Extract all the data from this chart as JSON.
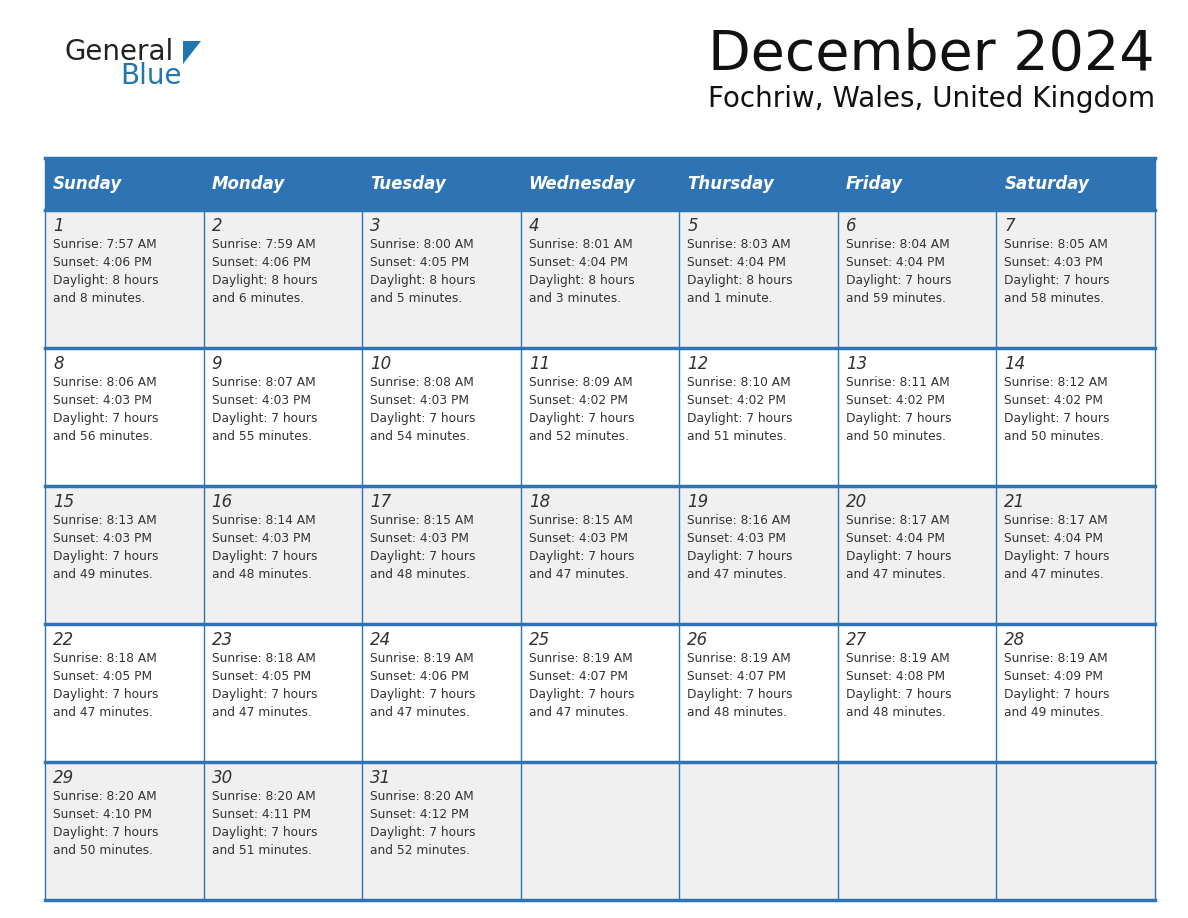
{
  "title": "December 2024",
  "subtitle": "Fochriw, Wales, United Kingdom",
  "header_bg": "#2E74B5",
  "header_text_color": "#FFFFFF",
  "days_of_week": [
    "Sunday",
    "Monday",
    "Tuesday",
    "Wednesday",
    "Thursday",
    "Friday",
    "Saturday"
  ],
  "row_bg_odd": "#F0F0F0",
  "row_bg_even": "#FFFFFF",
  "cell_text_color": "#333333",
  "grid_line_color": "#2E74B5",
  "calendar_data": [
    [
      {
        "day": "1",
        "sunrise": "7:57 AM",
        "sunset": "4:06 PM",
        "daylight1": "Daylight: 8 hours",
        "daylight2": "and 8 minutes."
      },
      {
        "day": "2",
        "sunrise": "7:59 AM",
        "sunset": "4:06 PM",
        "daylight1": "Daylight: 8 hours",
        "daylight2": "and 6 minutes."
      },
      {
        "day": "3",
        "sunrise": "8:00 AM",
        "sunset": "4:05 PM",
        "daylight1": "Daylight: 8 hours",
        "daylight2": "and 5 minutes."
      },
      {
        "day": "4",
        "sunrise": "8:01 AM",
        "sunset": "4:04 PM",
        "daylight1": "Daylight: 8 hours",
        "daylight2": "and 3 minutes."
      },
      {
        "day": "5",
        "sunrise": "8:03 AM",
        "sunset": "4:04 PM",
        "daylight1": "Daylight: 8 hours",
        "daylight2": "and 1 minute."
      },
      {
        "day": "6",
        "sunrise": "8:04 AM",
        "sunset": "4:04 PM",
        "daylight1": "Daylight: 7 hours",
        "daylight2": "and 59 minutes."
      },
      {
        "day": "7",
        "sunrise": "8:05 AM",
        "sunset": "4:03 PM",
        "daylight1": "Daylight: 7 hours",
        "daylight2": "and 58 minutes."
      }
    ],
    [
      {
        "day": "8",
        "sunrise": "8:06 AM",
        "sunset": "4:03 PM",
        "daylight1": "Daylight: 7 hours",
        "daylight2": "and 56 minutes."
      },
      {
        "day": "9",
        "sunrise": "8:07 AM",
        "sunset": "4:03 PM",
        "daylight1": "Daylight: 7 hours",
        "daylight2": "and 55 minutes."
      },
      {
        "day": "10",
        "sunrise": "8:08 AM",
        "sunset": "4:03 PM",
        "daylight1": "Daylight: 7 hours",
        "daylight2": "and 54 minutes."
      },
      {
        "day": "11",
        "sunrise": "8:09 AM",
        "sunset": "4:02 PM",
        "daylight1": "Daylight: 7 hours",
        "daylight2": "and 52 minutes."
      },
      {
        "day": "12",
        "sunrise": "8:10 AM",
        "sunset": "4:02 PM",
        "daylight1": "Daylight: 7 hours",
        "daylight2": "and 51 minutes."
      },
      {
        "day": "13",
        "sunrise": "8:11 AM",
        "sunset": "4:02 PM",
        "daylight1": "Daylight: 7 hours",
        "daylight2": "and 50 minutes."
      },
      {
        "day": "14",
        "sunrise": "8:12 AM",
        "sunset": "4:02 PM",
        "daylight1": "Daylight: 7 hours",
        "daylight2": "and 50 minutes."
      }
    ],
    [
      {
        "day": "15",
        "sunrise": "8:13 AM",
        "sunset": "4:03 PM",
        "daylight1": "Daylight: 7 hours",
        "daylight2": "and 49 minutes."
      },
      {
        "day": "16",
        "sunrise": "8:14 AM",
        "sunset": "4:03 PM",
        "daylight1": "Daylight: 7 hours",
        "daylight2": "and 48 minutes."
      },
      {
        "day": "17",
        "sunrise": "8:15 AM",
        "sunset": "4:03 PM",
        "daylight1": "Daylight: 7 hours",
        "daylight2": "and 48 minutes."
      },
      {
        "day": "18",
        "sunrise": "8:15 AM",
        "sunset": "4:03 PM",
        "daylight1": "Daylight: 7 hours",
        "daylight2": "and 47 minutes."
      },
      {
        "day": "19",
        "sunrise": "8:16 AM",
        "sunset": "4:03 PM",
        "daylight1": "Daylight: 7 hours",
        "daylight2": "and 47 minutes."
      },
      {
        "day": "20",
        "sunrise": "8:17 AM",
        "sunset": "4:04 PM",
        "daylight1": "Daylight: 7 hours",
        "daylight2": "and 47 minutes."
      },
      {
        "day": "21",
        "sunrise": "8:17 AM",
        "sunset": "4:04 PM",
        "daylight1": "Daylight: 7 hours",
        "daylight2": "and 47 minutes."
      }
    ],
    [
      {
        "day": "22",
        "sunrise": "8:18 AM",
        "sunset": "4:05 PM",
        "daylight1": "Daylight: 7 hours",
        "daylight2": "and 47 minutes."
      },
      {
        "day": "23",
        "sunrise": "8:18 AM",
        "sunset": "4:05 PM",
        "daylight1": "Daylight: 7 hours",
        "daylight2": "and 47 minutes."
      },
      {
        "day": "24",
        "sunrise": "8:19 AM",
        "sunset": "4:06 PM",
        "daylight1": "Daylight: 7 hours",
        "daylight2": "and 47 minutes."
      },
      {
        "day": "25",
        "sunrise": "8:19 AM",
        "sunset": "4:07 PM",
        "daylight1": "Daylight: 7 hours",
        "daylight2": "and 47 minutes."
      },
      {
        "day": "26",
        "sunrise": "8:19 AM",
        "sunset": "4:07 PM",
        "daylight1": "Daylight: 7 hours",
        "daylight2": "and 48 minutes."
      },
      {
        "day": "27",
        "sunrise": "8:19 AM",
        "sunset": "4:08 PM",
        "daylight1": "Daylight: 7 hours",
        "daylight2": "and 48 minutes."
      },
      {
        "day": "28",
        "sunrise": "8:19 AM",
        "sunset": "4:09 PM",
        "daylight1": "Daylight: 7 hours",
        "daylight2": "and 49 minutes."
      }
    ],
    [
      {
        "day": "29",
        "sunrise": "8:20 AM",
        "sunset": "4:10 PM",
        "daylight1": "Daylight: 7 hours",
        "daylight2": "and 50 minutes."
      },
      {
        "day": "30",
        "sunrise": "8:20 AM",
        "sunset": "4:11 PM",
        "daylight1": "Daylight: 7 hours",
        "daylight2": "and 51 minutes."
      },
      {
        "day": "31",
        "sunrise": "8:20 AM",
        "sunset": "4:12 PM",
        "daylight1": "Daylight: 7 hours",
        "daylight2": "and 52 minutes."
      },
      null,
      null,
      null,
      null
    ]
  ],
  "logo_general_color": "#222222",
  "logo_blue_color": "#2176AE"
}
